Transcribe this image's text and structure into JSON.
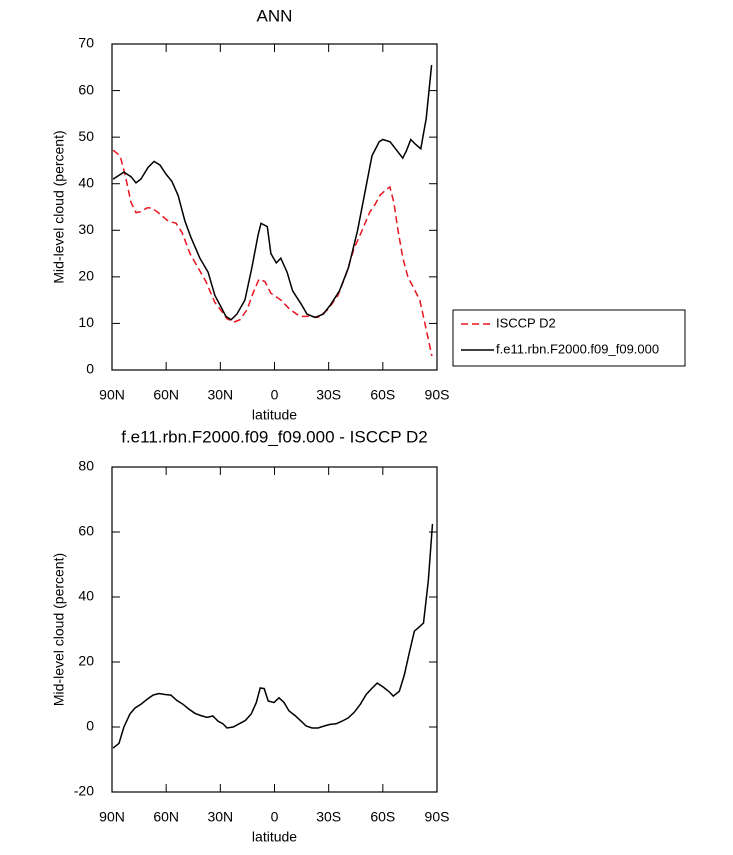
{
  "chart_data": [
    {
      "type": "line",
      "title": "ANN",
      "xlabel": "latitude",
      "ylabel": "Mid-level cloud (percent)",
      "xlim": [
        90,
        -90
      ],
      "ylim": [
        0,
        70
      ],
      "xticks": [
        {
          "value": 90,
          "label": "90N"
        },
        {
          "value": 60,
          "label": "60N"
        },
        {
          "value": 30,
          "label": "30N"
        },
        0,
        {
          "value": -30,
          "label": "30S"
        },
        {
          "value": -60,
          "label": "60S"
        },
        {
          "value": -90,
          "label": "90S"
        }
      ],
      "yticks": [
        0,
        10,
        20,
        30,
        40,
        50,
        60,
        70
      ],
      "legend": "right",
      "series": [
        {
          "name": "ISCCP D2",
          "color": "#e8141e",
          "line_style": "dashed",
          "x": [
            89.4,
            85.5,
            82.8,
            79.5,
            76.7,
            74,
            70.6,
            67.9,
            63.4,
            59,
            54.5,
            51.2,
            46.8,
            42.4,
            38,
            33,
            29.1,
            26.3,
            22.4,
            19.1,
            15.2,
            11.4,
            8.6,
            5.3,
            2,
            -3.6,
            -8.6,
            -14.1,
            -19.7,
            -24.1,
            -29.6,
            -35.1,
            -39.6,
            -44,
            -48.5,
            -52.9,
            -55.6,
            -58.4,
            -61.7,
            -63.9,
            -66.1,
            -68.4,
            -71.1,
            -73.9,
            -77.2,
            -80.5,
            -83.3,
            -85.5,
            -87.2
          ],
          "values": [
            47.2,
            46,
            42,
            36,
            33.8,
            34,
            34.8,
            34.8,
            33.5,
            32,
            31.5,
            29.5,
            25,
            22,
            19,
            14.5,
            12.5,
            11,
            10.3,
            10.8,
            13,
            17,
            19.5,
            19,
            16.5,
            15,
            13,
            11.5,
            11.5,
            11.3,
            13,
            16,
            20.5,
            26,
            30,
            34,
            35.5,
            37.5,
            38.7,
            39.3,
            36,
            30,
            24,
            20,
            17.5,
            15,
            10,
            6,
            3
          ]
        },
        {
          "name": "f.e11.rbn.F2000.f09_f09.000",
          "color": "#000000",
          "line_style": "solid",
          "x": [
            89.4,
            83.4,
            79.5,
            76.7,
            74,
            70,
            66.7,
            63.4,
            60,
            56.8,
            53.4,
            49.6,
            46.3,
            41.3,
            36.8,
            33,
            29.6,
            26.9,
            24,
            20.8,
            16.4,
            12.5,
            9.1,
            7.5,
            4,
            2,
            -1,
            -3.5,
            -7,
            -10,
            -15,
            -18,
            -22.5,
            -27,
            -31,
            -36,
            -41,
            -46,
            -50,
            -54,
            -58,
            -60,
            -64,
            -68,
            -71,
            -73,
            -75.5,
            -78,
            -81,
            -84,
            -87
          ],
          "values": [
            41,
            42.5,
            41.5,
            40.2,
            41,
            43.5,
            44.8,
            44,
            42,
            40.5,
            37.5,
            32,
            28.5,
            24,
            21,
            16,
            13.5,
            11.5,
            10.8,
            12,
            15,
            22,
            29,
            31.5,
            30.8,
            25,
            23,
            24,
            21,
            17,
            14,
            12,
            11.3,
            12,
            14,
            17,
            22,
            30,
            38,
            46,
            49,
            49.5,
            49,
            47,
            45.5,
            47,
            49.5,
            48.5,
            47.5,
            54,
            65.5
          ]
        }
      ]
    },
    {
      "type": "line",
      "title": "f.e11.rbn.F2000.f09_f09.000 - ISCCP D2",
      "xlabel": "latitude",
      "ylabel": "Mid-level cloud (percent)",
      "xlim": [
        90,
        -90
      ],
      "ylim": [
        -20,
        80
      ],
      "xticks": [
        {
          "value": 90,
          "label": "90N"
        },
        {
          "value": 60,
          "label": "60N"
        },
        {
          "value": 30,
          "label": "30N"
        },
        0,
        {
          "value": -30,
          "label": "30S"
        },
        {
          "value": -60,
          "label": "60S"
        },
        {
          "value": -90,
          "label": "90S"
        }
      ],
      "yticks": [
        -20,
        0,
        20,
        40,
        60,
        80
      ],
      "color": "#000000",
      "x": [
        89.4,
        86.1,
        83.4,
        80.1,
        77.3,
        74,
        70.6,
        67.3,
        64,
        60.7,
        57.4,
        54.1,
        50.7,
        47.4,
        44,
        40.7,
        37.4,
        34.1,
        31.3,
        28.5,
        26.3,
        22.9,
        19.6,
        16.2,
        12.9,
        10.1,
        7.9,
        5.7,
        3.5,
        0.3,
        -2.5,
        -5.3,
        -8,
        -11.4,
        -14.7,
        -17.5,
        -20.8,
        -24.1,
        -27.5,
        -30.8,
        -34.1,
        -37.5,
        -40.8,
        -44.1,
        -47.5,
        -50.8,
        -54.1,
        -56.9,
        -60.2,
        -63.6,
        -65.8,
        -69.1,
        -71.9,
        -74.7,
        -77.5,
        -80.2,
        -82.5,
        -85.2,
        -87.5
      ],
      "values": [
        -6.5,
        -5,
        0,
        4,
        5.8,
        7,
        8.5,
        9.8,
        10.3,
        10,
        9.8,
        8.2,
        7,
        5.5,
        4.2,
        3.5,
        3,
        3.4,
        1.8,
        1,
        -0.3,
        0,
        1,
        2,
        4,
        7.5,
        12,
        11.8,
        8,
        7.5,
        9,
        7.5,
        5,
        3.5,
        1.8,
        0.3,
        -0.3,
        -0.3,
        0.3,
        0.8,
        1,
        1.8,
        2.8,
        4.5,
        7,
        10,
        12,
        13.5,
        12.3,
        10.8,
        9.5,
        11,
        16,
        23,
        29.5,
        30.8,
        32,
        45,
        62.5
      ]
    }
  ]
}
